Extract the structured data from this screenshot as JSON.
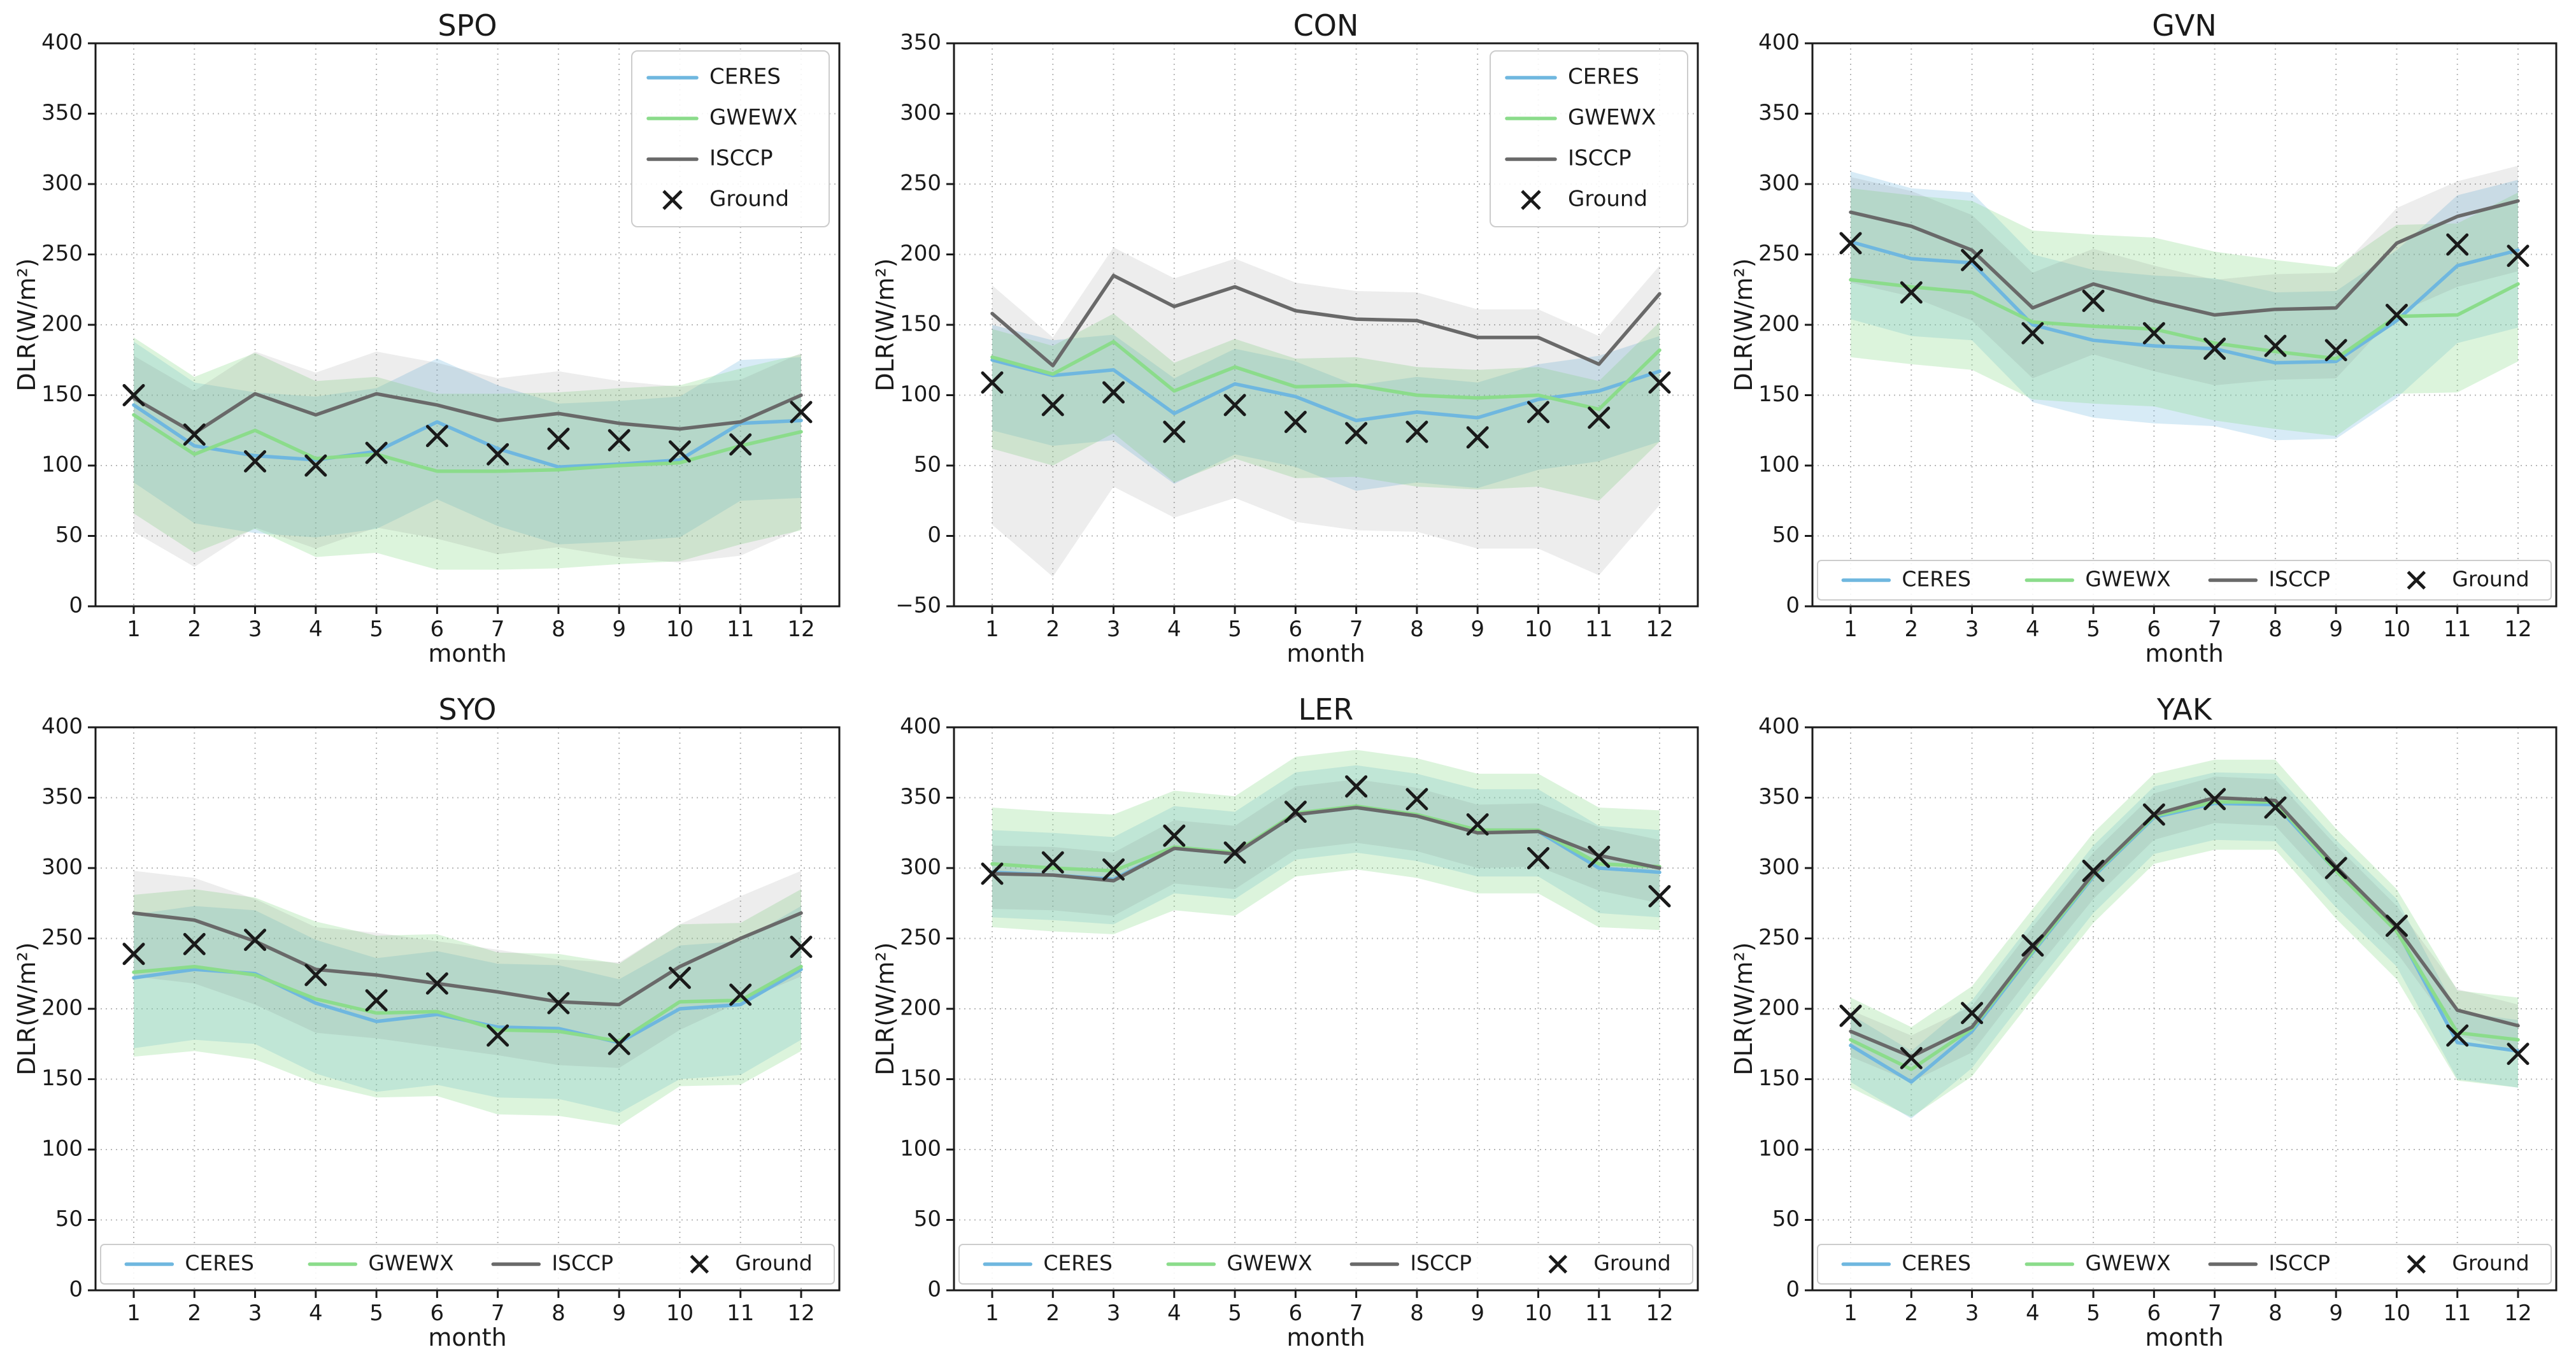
{
  "labels": {
    "x": "month",
    "y": "DLR(W/m²)"
  },
  "style": {
    "background": "#ffffff",
    "text_color": "#1a1a1a",
    "grid_color": "#b8b8b8",
    "spine_color": "#1a1a1a",
    "legend_border": "#cccccc",
    "ceres_color": "#6fb7df",
    "gwewx_color": "#8bdc8b",
    "isccp_color": "#696969",
    "ground_color": "#1a1a1a"
  },
  "chart_data": [
    {
      "type": "line",
      "title": "SPO",
      "xlabel": "month",
      "ylabel": "DLR(W/m²)",
      "x": [
        1,
        2,
        3,
        4,
        5,
        6,
        7,
        8,
        9,
        10,
        11,
        12
      ],
      "ylim": [
        0,
        400
      ],
      "ytick_step": 50,
      "grid": true,
      "legend_position": "upper-right",
      "series": [
        {
          "name": "CERES",
          "color": "#6fb7df",
          "band_alpha": 0.28,
          "band": {
            "high": 45,
            "low": 55
          },
          "values": [
            143,
            114,
            107,
            104,
            110,
            131,
            112,
            99,
            101,
            104,
            130,
            132
          ]
        },
        {
          "name": "GWEWX",
          "color": "#8bdc8b",
          "band_alpha": 0.3,
          "band": {
            "high": 55,
            "low": 70
          },
          "values": [
            136,
            108,
            125,
            105,
            108,
            96,
            96,
            97,
            100,
            102,
            114,
            124
          ]
        },
        {
          "name": "ISCCP",
          "color": "#696969",
          "band_alpha": 0.12,
          "band": {
            "high": 30,
            "low": 95
          },
          "values": [
            148,
            123,
            151,
            136,
            151,
            143,
            132,
            137,
            130,
            126,
            131,
            150
          ]
        },
        {
          "name": "Ground",
          "marker": "x",
          "color": "#1a1a1a",
          "values": [
            150,
            122,
            103,
            100,
            109,
            121,
            108,
            119,
            118,
            110,
            115,
            138
          ]
        }
      ]
    },
    {
      "type": "line",
      "title": "CON",
      "xlabel": "month",
      "ylabel": "DLR(W/m²)",
      "x": [
        1,
        2,
        3,
        4,
        5,
        6,
        7,
        8,
        9,
        10,
        11,
        12
      ],
      "ylim": [
        -50,
        350
      ],
      "ytick_step": 50,
      "grid": true,
      "legend_position": "upper-right",
      "series": [
        {
          "name": "CERES",
          "color": "#6fb7df",
          "band_alpha": 0.28,
          "band": {
            "high": 25,
            "low": 50
          },
          "values": [
            125,
            114,
            118,
            87,
            108,
            99,
            82,
            88,
            84,
            97,
            103,
            117
          ]
        },
        {
          "name": "GWEWX",
          "color": "#8bdc8b",
          "band_alpha": 0.3,
          "band": {
            "high": 20,
            "low": 65
          },
          "values": [
            127,
            115,
            138,
            103,
            120,
            106,
            107,
            100,
            98,
            100,
            90,
            132
          ]
        },
        {
          "name": "ISCCP",
          "color": "#696969",
          "band_alpha": 0.12,
          "band": {
            "high": 20,
            "low": 150
          },
          "values": [
            158,
            121,
            185,
            163,
            177,
            160,
            154,
            153,
            141,
            141,
            122,
            172
          ]
        },
        {
          "name": "Ground",
          "marker": "x",
          "color": "#1a1a1a",
          "values": [
            109,
            93,
            102,
            74,
            93,
            81,
            73,
            74,
            70,
            88,
            84,
            109
          ]
        }
      ]
    },
    {
      "type": "line",
      "title": "GVN",
      "xlabel": "month",
      "ylabel": "DLR(W/m²)",
      "x": [
        1,
        2,
        3,
        4,
        5,
        6,
        7,
        8,
        9,
        10,
        11,
        12
      ],
      "ylim": [
        0,
        400
      ],
      "ytick_step": 50,
      "grid": true,
      "legend_position": "bottom",
      "series": [
        {
          "name": "CERES",
          "color": "#6fb7df",
          "band_alpha": 0.28,
          "band": {
            "high": 50,
            "low": 55
          },
          "values": [
            259,
            247,
            244,
            200,
            189,
            185,
            183,
            173,
            174,
            203,
            242,
            253
          ]
        },
        {
          "name": "GWEWX",
          "color": "#8bdc8b",
          "band_alpha": 0.3,
          "band": {
            "high": 65,
            "low": 55
          },
          "values": [
            232,
            227,
            223,
            202,
            199,
            197,
            187,
            181,
            176,
            206,
            207,
            229
          ]
        },
        {
          "name": "ISCCP",
          "color": "#696969",
          "band_alpha": 0.12,
          "band": {
            "high": 25,
            "low": 50
          },
          "values": [
            280,
            270,
            253,
            212,
            229,
            217,
            207,
            211,
            212,
            258,
            277,
            288
          ]
        },
        {
          "name": "Ground",
          "marker": "x",
          "color": "#1a1a1a",
          "values": [
            258,
            223,
            246,
            194,
            217,
            194,
            183,
            185,
            182,
            207,
            257,
            249
          ]
        }
      ]
    },
    {
      "type": "line",
      "title": "SYO",
      "xlabel": "month",
      "ylabel": "DLR(W/m²)",
      "x": [
        1,
        2,
        3,
        4,
        5,
        6,
        7,
        8,
        9,
        10,
        11,
        12
      ],
      "ylim": [
        0,
        400
      ],
      "ytick_step": 50,
      "grid": true,
      "legend_position": "bottom",
      "series": [
        {
          "name": "CERES",
          "color": "#6fb7df",
          "band_alpha": 0.28,
          "band": {
            "high": 45,
            "low": 50
          },
          "values": [
            222,
            228,
            225,
            204,
            191,
            196,
            187,
            186,
            176,
            200,
            203,
            228
          ]
        },
        {
          "name": "GWEWX",
          "color": "#8bdc8b",
          "band_alpha": 0.3,
          "band": {
            "high": 55,
            "low": 60
          },
          "values": [
            226,
            230,
            224,
            207,
            197,
            198,
            185,
            184,
            177,
            205,
            206,
            230
          ]
        },
        {
          "name": "ISCCP",
          "color": "#696969",
          "band_alpha": 0.12,
          "band": {
            "high": 30,
            "low": 45
          },
          "values": [
            268,
            263,
            248,
            228,
            224,
            218,
            212,
            205,
            203,
            230,
            250,
            268
          ]
        },
        {
          "name": "Ground",
          "marker": "x",
          "color": "#1a1a1a",
          "values": [
            239,
            246,
            249,
            224,
            206,
            218,
            181,
            204,
            175,
            222,
            210,
            244
          ]
        }
      ]
    },
    {
      "type": "line",
      "title": "LER",
      "xlabel": "month",
      "ylabel": "DLR(W/m²)",
      "x": [
        1,
        2,
        3,
        4,
        5,
        6,
        7,
        8,
        9,
        10,
        11,
        12
      ],
      "ylim": [
        0,
        400
      ],
      "ytick_step": 50,
      "grid": true,
      "legend_position": "bottom",
      "series": [
        {
          "name": "CERES",
          "color": "#6fb7df",
          "band_alpha": 0.28,
          "band": {
            "high": 30,
            "low": 32
          },
          "values": [
            297,
            295,
            292,
            314,
            310,
            338,
            343,
            337,
            326,
            326,
            300,
            297
          ]
        },
        {
          "name": "GWEWX",
          "color": "#8bdc8b",
          "band_alpha": 0.3,
          "band": {
            "high": 40,
            "low": 45
          },
          "values": [
            303,
            300,
            298,
            315,
            311,
            339,
            344,
            338,
            327,
            327,
            303,
            301
          ]
        },
        {
          "name": "ISCCP",
          "color": "#696969",
          "band_alpha": 0.12,
          "band": {
            "high": 20,
            "low": 25
          },
          "values": [
            296,
            295,
            291,
            314,
            310,
            338,
            343,
            337,
            325,
            326,
            309,
            300
          ]
        },
        {
          "name": "Ground",
          "marker": "x",
          "color": "#1a1a1a",
          "values": [
            296,
            304,
            299,
            323,
            311,
            340,
            358,
            349,
            331,
            307,
            308,
            280
          ]
        }
      ]
    },
    {
      "type": "line",
      "title": "YAK",
      "xlabel": "month",
      "ylabel": "DLR(W/m²)",
      "x": [
        1,
        2,
        3,
        4,
        5,
        6,
        7,
        8,
        9,
        10,
        11,
        12
      ],
      "ylim": [
        0,
        400
      ],
      "ytick_step": 50,
      "grid": true,
      "legend_position": "bottom",
      "series": [
        {
          "name": "CERES",
          "color": "#6fb7df",
          "band_alpha": 0.28,
          "band": {
            "high": 22,
            "low": 26
          },
          "values": [
            174,
            148,
            184,
            240,
            294,
            336,
            346,
            345,
            298,
            256,
            176,
            170
          ]
        },
        {
          "name": "GWEWX",
          "color": "#8bdc8b",
          "band_alpha": 0.3,
          "band": {
            "high": 30,
            "low": 34
          },
          "values": [
            178,
            157,
            186,
            241,
            295,
            337,
            347,
            347,
            298,
            255,
            183,
            178
          ]
        },
        {
          "name": "ISCCP",
          "color": "#696969",
          "band_alpha": 0.12,
          "band": {
            "high": 15,
            "low": 18
          },
          "values": [
            184,
            166,
            187,
            243,
            296,
            338,
            350,
            348,
            301,
            258,
            199,
            188
          ]
        },
        {
          "name": "Ground",
          "marker": "x",
          "color": "#1a1a1a",
          "values": [
            195,
            165,
            197,
            245,
            298,
            338,
            349,
            343,
            300,
            259,
            181,
            168
          ]
        }
      ]
    }
  ]
}
